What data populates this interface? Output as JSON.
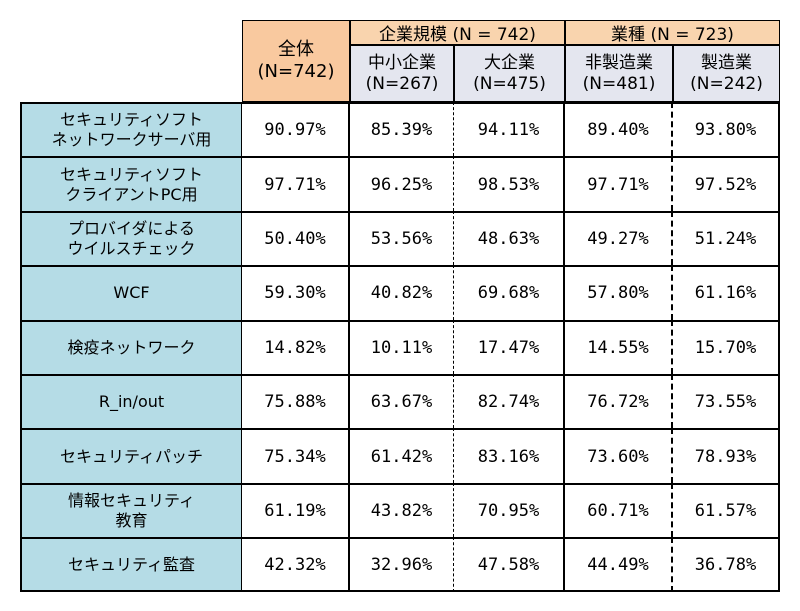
{
  "header": {
    "total": {
      "line1": "全体",
      "line2": "(N=742)"
    },
    "groups": [
      {
        "label": "企業規模 (N = 742)"
      },
      {
        "label": "業種 (N = 723)"
      }
    ],
    "subcolumns": [
      {
        "line1": "中小企業",
        "line2": "(N=267)"
      },
      {
        "line1": "大企業",
        "line2": "(N=475)"
      },
      {
        "line1": "非製造業",
        "line2": "(N=481)"
      },
      {
        "line1": "製造業",
        "line2": "(N=242)"
      }
    ]
  },
  "rows": [
    {
      "label": [
        "セキュリティソフト",
        "ネットワークサーバ用"
      ],
      "values": [
        "90.97%",
        "85.39%",
        "94.11%",
        "89.40%",
        "93.80%"
      ]
    },
    {
      "label": [
        "セキュリティソフト",
        "クライアントPC用"
      ],
      "values": [
        "97.71%",
        "96.25%",
        "98.53%",
        "97.71%",
        "97.52%"
      ]
    },
    {
      "label": [
        "プロバイダによる",
        "ウイルスチェック"
      ],
      "values": [
        "50.40%",
        "53.56%",
        "48.63%",
        "49.27%",
        "51.24%"
      ]
    },
    {
      "label": [
        "WCF"
      ],
      "values": [
        "59.30%",
        "40.82%",
        "69.68%",
        "57.80%",
        "61.16%"
      ]
    },
    {
      "label": [
        "検疫ネットワーク"
      ],
      "values": [
        "14.82%",
        "10.11%",
        "17.47%",
        "14.55%",
        "15.70%"
      ]
    },
    {
      "label": [
        "R_in/out"
      ],
      "values": [
        "75.88%",
        "63.67%",
        "82.74%",
        "76.72%",
        "73.55%"
      ]
    },
    {
      "label": [
        "セキュリティパッチ"
      ],
      "values": [
        "75.34%",
        "61.42%",
        "83.16%",
        "73.60%",
        "78.93%"
      ]
    },
    {
      "label": [
        "情報セキュリティ",
        "教育"
      ],
      "values": [
        "61.19%",
        "43.82%",
        "70.95%",
        "60.71%",
        "61.57%"
      ]
    },
    {
      "label": [
        "セキュリティ監査"
      ],
      "values": [
        "42.32%",
        "32.96%",
        "47.58%",
        "44.49%",
        "36.78%"
      ]
    }
  ]
}
